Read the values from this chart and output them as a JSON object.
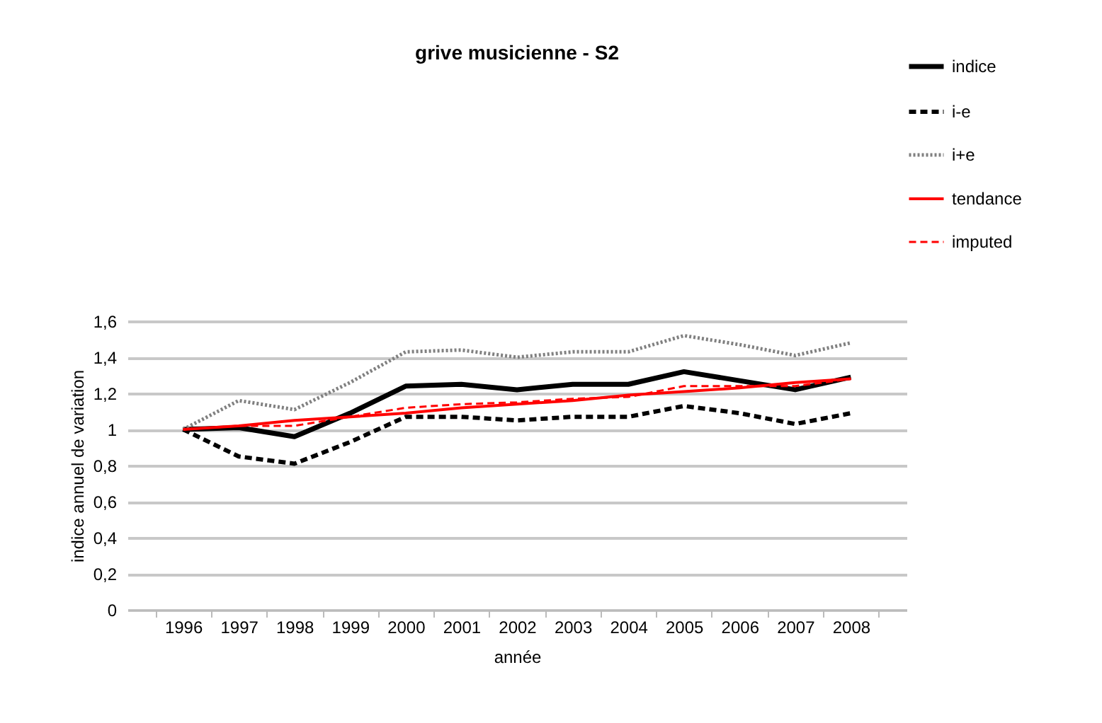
{
  "chart_data": {
    "type": "line",
    "title": "grive musicienne - S2",
    "xlabel": "année",
    "ylabel": "indice annuel de variation",
    "categories": [
      "1996",
      "1997",
      "1998",
      "1999",
      "2000",
      "2001",
      "2002",
      "2003",
      "2004",
      "2005",
      "2006",
      "2007",
      "2008"
    ],
    "series": [
      {
        "name": "indice",
        "color": "#000000",
        "line_style": "solid",
        "values": [
          1.0,
          1.01,
          0.96,
          1.09,
          1.24,
          1.25,
          1.22,
          1.25,
          1.25,
          1.32,
          1.27,
          1.22,
          1.29
        ]
      },
      {
        "name": "i-e",
        "color": "#000000",
        "line_style": "dashed",
        "values": [
          1.0,
          0.85,
          0.81,
          0.93,
          1.07,
          1.07,
          1.05,
          1.07,
          1.07,
          1.13,
          1.09,
          1.03,
          1.09
        ]
      },
      {
        "name": "i+e",
        "color": "#808080",
        "line_style": "dotted",
        "values": [
          1.0,
          1.16,
          1.11,
          1.26,
          1.43,
          1.44,
          1.4,
          1.43,
          1.43,
          1.52,
          1.47,
          1.41,
          1.48
        ]
      },
      {
        "name": "tendance",
        "color": "#ff0000",
        "line_style": "solid",
        "values": [
          1.0,
          1.02,
          1.05,
          1.07,
          1.09,
          1.12,
          1.14,
          1.16,
          1.19,
          1.21,
          1.23,
          1.26,
          1.28
        ]
      },
      {
        "name": "imputed",
        "color": "#ff0000",
        "line_style": "dashed",
        "values": [
          1.0,
          1.02,
          1.02,
          1.07,
          1.12,
          1.14,
          1.15,
          1.17,
          1.18,
          1.24,
          1.24,
          1.24,
          1.28
        ]
      }
    ],
    "ylim": [
      0,
      1.6
    ],
    "yticks": [
      0,
      {
        "value": 0.2,
        "label": "0,2"
      },
      {
        "value": 0.4,
        "label": "0,4"
      },
      {
        "value": 0.6,
        "label": "0,6"
      },
      {
        "value": 0.8,
        "label": "0,8"
      },
      1,
      {
        "value": 1.2,
        "label": "1,2"
      },
      {
        "value": 1.4,
        "label": "1,4"
      },
      {
        "value": 1.6,
        "label": "1,6"
      }
    ],
    "grid": "y",
    "legend": "top right",
    "marker": "none"
  }
}
